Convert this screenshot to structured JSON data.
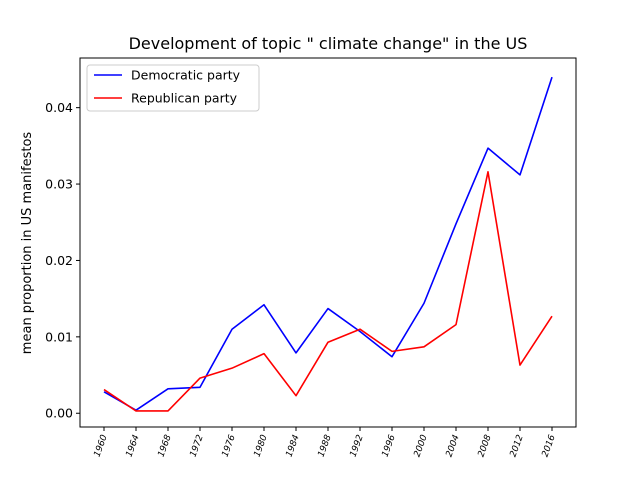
{
  "chart_data": {
    "type": "line",
    "title": "Development of topic \" climate change\" in the US",
    "xlabel": "",
    "ylabel": "mean proportion in US manifestos",
    "x": [
      1960,
      1964,
      1968,
      1972,
      1976,
      1980,
      1984,
      1988,
      1992,
      1996,
      2000,
      2004,
      2008,
      2012,
      2016
    ],
    "x_tick_labels": [
      "1960",
      "1964",
      "1968",
      "1972",
      "1976",
      "1980",
      "1984",
      "1988",
      "1992",
      "1996",
      "2000",
      "2004",
      "2008",
      "2012",
      "2016"
    ],
    "y_ticks": [
      0.0,
      0.01,
      0.02,
      0.03,
      0.04
    ],
    "y_tick_labels": [
      "0.00",
      "0.01",
      "0.02",
      "0.03",
      "0.04"
    ],
    "ylim": [
      -0.0018,
      0.0465
    ],
    "xlim": [
      1957,
      2019
    ],
    "grid": false,
    "legend_position": "upper left",
    "series": [
      {
        "name": "Democratic party",
        "color": "#0000ff",
        "values": [
          0.0028,
          0.0004,
          0.0032,
          0.0034,
          0.011,
          0.0142,
          0.0079,
          0.0137,
          0.0107,
          0.0074,
          0.0144,
          0.0248,
          0.0347,
          0.0312,
          0.044
        ]
      },
      {
        "name": "Republican party",
        "color": "#ff0000",
        "values": [
          0.0031,
          0.0003,
          0.0003,
          0.0046,
          0.0059,
          0.0078,
          0.0023,
          0.0093,
          0.011,
          0.0081,
          0.0087,
          0.0116,
          0.0316,
          0.0063,
          0.0127
        ]
      }
    ]
  }
}
